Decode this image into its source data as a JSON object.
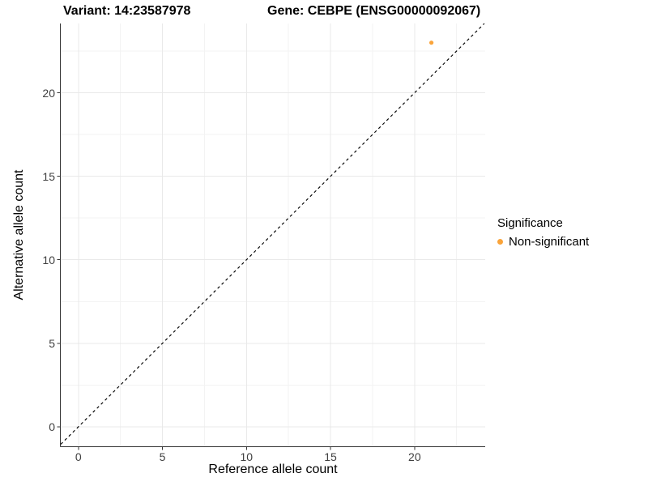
{
  "chart_data": {
    "type": "scatter",
    "title_left": "Variant: 14:23587978",
    "title_right": "Gene: CEBPE (ENSG00000092067)",
    "xlabel": "Reference allele count",
    "ylabel": "Alternative allele count",
    "x_ticks": [
      0,
      5,
      10,
      15,
      20
    ],
    "y_ticks": [
      0,
      5,
      10,
      15,
      20
    ],
    "xlim": [
      -1.05,
      24.2
    ],
    "ylim": [
      -1.17,
      24.15
    ],
    "grid": "major+minor",
    "legend_position": "right",
    "legend_title": "Significance",
    "series": [
      {
        "name": "Non-significant",
        "color": "#FAA43A",
        "points": [
          {
            "x": 21,
            "y": 23
          }
        ]
      }
    ],
    "reference_line": {
      "equation": "y = x",
      "style": "dashed",
      "color": "#000000"
    }
  },
  "colors": {
    "background": "#FFFFFF",
    "axis_line": "#333333",
    "grid_major": "#E9E9E9",
    "grid_minor": "#F3F3F3",
    "tick_text": "#404040",
    "point_orange": "#FAA43A"
  }
}
